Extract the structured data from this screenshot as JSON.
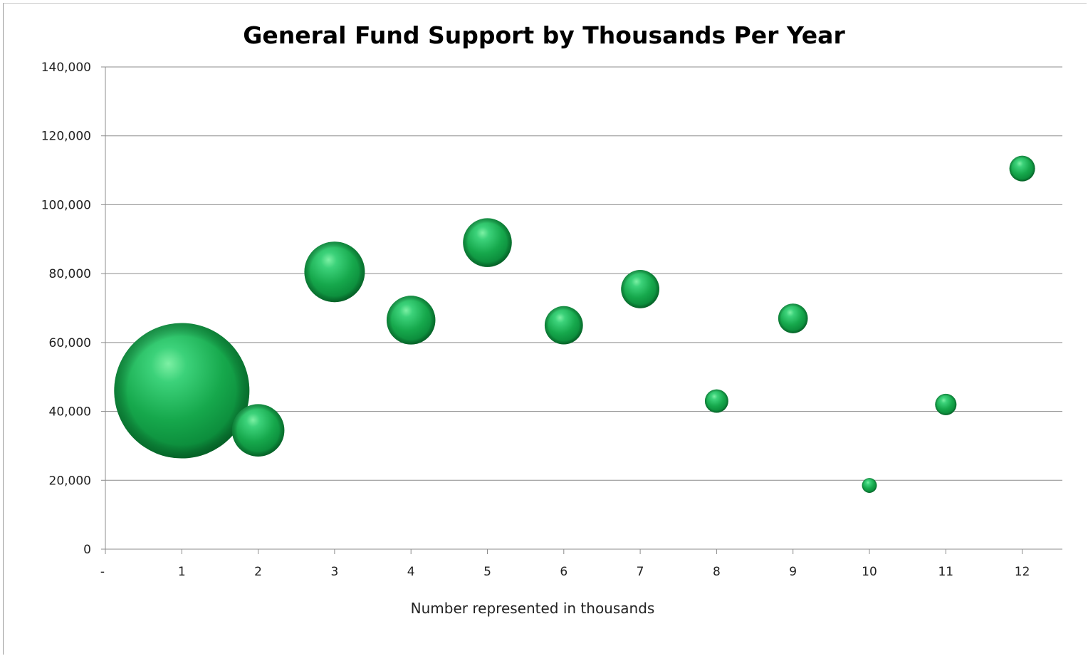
{
  "chart_data": {
    "type": "bubble",
    "title": "General Fund Support by Thousands Per Year",
    "xlabel": "Number represented in thousands",
    "ylabel": "",
    "xlim": [
      0,
      12.5
    ],
    "ylim": [
      0,
      140000
    ],
    "x_ticks": [
      {
        "value": 0,
        "label": "-"
      },
      {
        "value": 1,
        "label": "1"
      },
      {
        "value": 2,
        "label": "2"
      },
      {
        "value": 3,
        "label": "3"
      },
      {
        "value": 4,
        "label": "4"
      },
      {
        "value": 5,
        "label": "5"
      },
      {
        "value": 6,
        "label": "6"
      },
      {
        "value": 7,
        "label": "7"
      },
      {
        "value": 8,
        "label": "8"
      },
      {
        "value": 9,
        "label": "9"
      },
      {
        "value": 10,
        "label": "10"
      },
      {
        "value": 11,
        "label": "11"
      },
      {
        "value": 12,
        "label": "12"
      }
    ],
    "y_ticks": [
      {
        "value": 0,
        "label": "0"
      },
      {
        "value": 20000,
        "label": "20,000"
      },
      {
        "value": 40000,
        "label": "40,000"
      },
      {
        "value": 60000,
        "label": "60,000"
      },
      {
        "value": 80000,
        "label": "80,000"
      },
      {
        "value": 100000,
        "label": "100,000"
      },
      {
        "value": 120000,
        "label": "120,000"
      },
      {
        "value": 140000,
        "label": "140,000"
      }
    ],
    "grid": "horizontal",
    "legend": "none",
    "bubble_color": "#1aa84b",
    "points": [
      {
        "x": 1,
        "y": 46000,
        "size": 100
      },
      {
        "x": 2,
        "y": 34500,
        "size": 15
      },
      {
        "x": 3,
        "y": 80500,
        "size": 20
      },
      {
        "x": 4,
        "y": 66500,
        "size": 13
      },
      {
        "x": 5,
        "y": 89000,
        "size": 13
      },
      {
        "x": 6,
        "y": 65000,
        "size": 8
      },
      {
        "x": 7,
        "y": 75500,
        "size": 8
      },
      {
        "x": 8,
        "y": 43000,
        "size": 3
      },
      {
        "x": 9,
        "y": 67000,
        "size": 4.8
      },
      {
        "x": 10,
        "y": 18500,
        "size": 1.2
      },
      {
        "x": 11,
        "y": 42000,
        "size": 2.5
      },
      {
        "x": 12,
        "y": 110500,
        "size": 3.6
      }
    ]
  }
}
